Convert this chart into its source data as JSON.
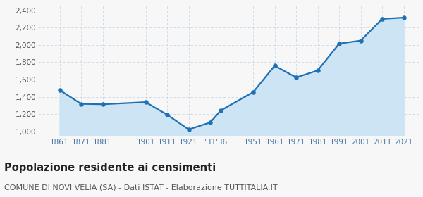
{
  "years": [
    1861,
    1871,
    1881,
    1901,
    1911,
    1921,
    1931,
    1936,
    1951,
    1961,
    1971,
    1981,
    1991,
    2001,
    2011,
    2021
  ],
  "population": [
    1480,
    1320,
    1315,
    1340,
    1195,
    1025,
    1105,
    1245,
    1455,
    1760,
    1625,
    1705,
    2015,
    2050,
    2300,
    2315
  ],
  "x_tick_pos": [
    1861,
    1871,
    1881,
    1901,
    1911,
    1921,
    1933.5,
    1951,
    1961,
    1971,
    1981,
    1991,
    2001,
    2011,
    2021
  ],
  "x_tick_labels": [
    "1861",
    "1871",
    "1881",
    "1901",
    "1911",
    "1921",
    "'31'36",
    "1951",
    "1961",
    "1971",
    "1981",
    "1991",
    "2001",
    "2011",
    "2021"
  ],
  "ylim": [
    950,
    2450
  ],
  "yticks": [
    1000,
    1200,
    1400,
    1600,
    1800,
    2000,
    2200,
    2400
  ],
  "xlim_left": 1851,
  "xlim_right": 2028,
  "line_color": "#2070b4",
  "fill_color": "#cde4f5",
  "marker_color": "#2070b4",
  "grid_color": "#c8d8e8",
  "bg_color": "#f7f7f7",
  "title": "Popolazione residente ai censimenti",
  "subtitle": "COMUNE DI NOVI VELIA (SA) - Dati ISTAT - Elaborazione TUTTITALIA.IT",
  "title_fontsize": 10.5,
  "subtitle_fontsize": 8,
  "tick_color": "#4477aa",
  "ytick_color": "#555555"
}
